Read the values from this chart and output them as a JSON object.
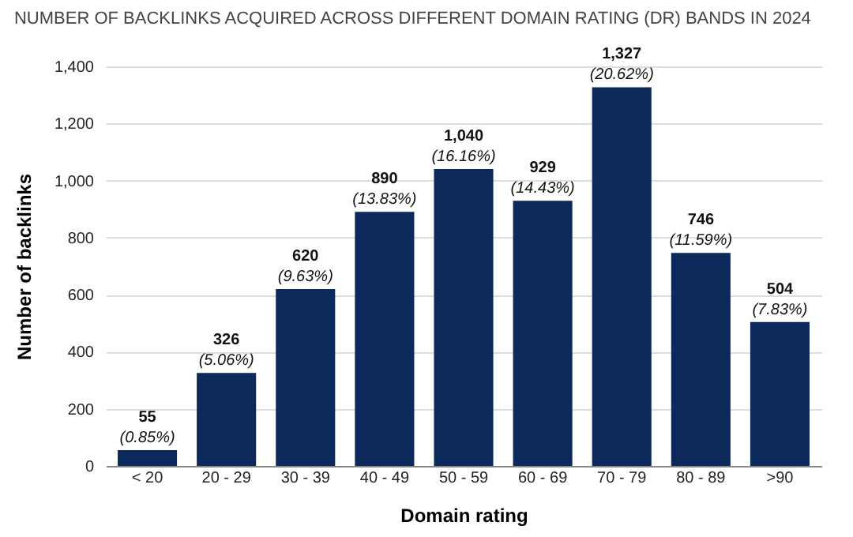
{
  "chart_data": {
    "type": "bar",
    "title": "NUMBER OF BACKLINKS ACQUIRED ACROSS DIFFERENT DOMAIN RATING (DR) BANDS IN 2024",
    "xlabel": "Domain rating",
    "ylabel": "Number of backlinks",
    "categories": [
      "< 20",
      "20 - 29",
      "30 - 39",
      "40 - 49",
      "50 - 59",
      "60 - 69",
      "70 - 79",
      "80 - 89",
      ">90"
    ],
    "values": [
      55,
      326,
      620,
      890,
      1040,
      929,
      1327,
      746,
      504
    ],
    "value_labels": [
      "55\n(0.85%)",
      "326\n(5.06%)",
      "620\n(9.63%)",
      "890\n(13.83%)",
      "1,040\n(16.16%)",
      "929\n(14.43%)",
      "1,327\n(20.62%)",
      "746\n(11.59%)",
      "504\n(7.83%)"
    ],
    "color": "#0b2a5b",
    "ylim": [
      0,
      1400
    ],
    "yticks": [
      0,
      200,
      400,
      600,
      800,
      {
        "value": 1000,
        "label": "1,000"
      },
      {
        "value": 1200,
        "label": "1,200"
      },
      {
        "value": 1400,
        "label": "1,400"
      }
    ],
    "grid": "y"
  }
}
